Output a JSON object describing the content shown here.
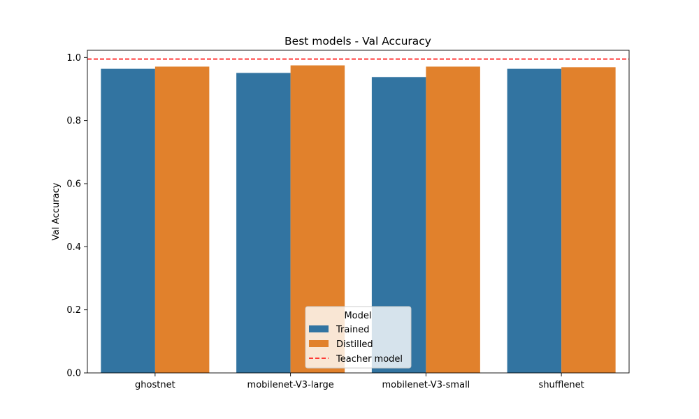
{
  "chart_data": {
    "type": "bar",
    "title": "Best models - Val Accuracy",
    "xlabel": "",
    "ylabel": "Val Accuracy",
    "categories": [
      "ghostnet",
      "mobilenet-V3-large",
      "mobilenet-V3-small",
      "shufflenet"
    ],
    "series": [
      {
        "name": "Trained",
        "color": "#3274a1",
        "values": [
          0.964,
          0.951,
          0.938,
          0.964
        ]
      },
      {
        "name": "Distilled",
        "color": "#e1812c",
        "values": [
          0.971,
          0.975,
          0.971,
          0.969
        ]
      }
    ],
    "reference_line": {
      "name": "Teacher model",
      "value": 0.995,
      "color": "#ff0000",
      "style": "dashed"
    },
    "ylim": [
      0,
      1.0228
    ],
    "yticks": [
      "0.0",
      "0.2",
      "0.4",
      "0.6",
      "0.8",
      "1.0"
    ],
    "grid": false,
    "legend": {
      "title": "Model",
      "placement": "bottom-center"
    }
  }
}
